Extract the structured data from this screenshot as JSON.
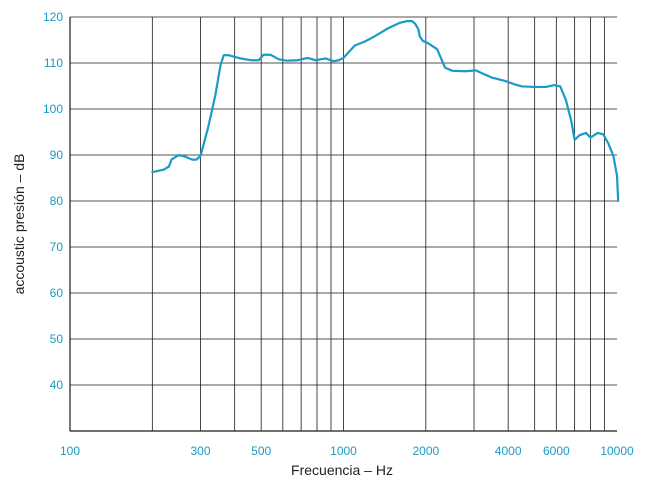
{
  "chart_data": {
    "type": "line",
    "title": "",
    "xlabel": "Frecuencia – Hz",
    "ylabel": "accoustic presión – dB",
    "x_scale": "log",
    "xlim": [
      100,
      10000
    ],
    "ylim": [
      30,
      120
    ],
    "grid": true,
    "x_gridlines": [
      200,
      300,
      400,
      500,
      600,
      700,
      800,
      900,
      1000,
      2000,
      3000,
      4000,
      5000,
      6000,
      7000,
      8000,
      9000
    ],
    "x_ticks": [
      {
        "value": 100,
        "label": "100"
      },
      {
        "value": 300,
        "label": "300"
      },
      {
        "value": 500,
        "label": "500"
      },
      {
        "value": 1000,
        "label": "1000"
      },
      {
        "value": 2000,
        "label": "2000"
      },
      {
        "value": 4000,
        "label": "4000"
      },
      {
        "value": 6000,
        "label": "6000"
      },
      {
        "value": 10000,
        "label": "10000"
      }
    ],
    "y_ticks": [
      {
        "value": 40,
        "label": "40"
      },
      {
        "value": 50,
        "label": "50"
      },
      {
        "value": 60,
        "label": "60"
      },
      {
        "value": 70,
        "label": "70"
      },
      {
        "value": 80,
        "label": "80"
      },
      {
        "value": 90,
        "label": "90"
      },
      {
        "value": 100,
        "label": "100"
      },
      {
        "value": 110,
        "label": "110"
      },
      {
        "value": 120,
        "label": "120"
      }
    ],
    "series": [
      {
        "color": "#1a9bc7",
        "points": [
          [
            200,
            86.3
          ],
          [
            220,
            86.8
          ],
          [
            230,
            87.5
          ],
          [
            235,
            89
          ],
          [
            250,
            90
          ],
          [
            265,
            89.6
          ],
          [
            280,
            89
          ],
          [
            290,
            89
          ],
          [
            300,
            89.8
          ],
          [
            320,
            96
          ],
          [
            340,
            103
          ],
          [
            355,
            109.5
          ],
          [
            365,
            111.7
          ],
          [
            380,
            111.7
          ],
          [
            420,
            111
          ],
          [
            460,
            110.6
          ],
          [
            490,
            110.6
          ],
          [
            510,
            111.8
          ],
          [
            540,
            111.8
          ],
          [
            580,
            110.8
          ],
          [
            620,
            110.5
          ],
          [
            680,
            110.6
          ],
          [
            740,
            111.1
          ],
          [
            790,
            110.6
          ],
          [
            860,
            111
          ],
          [
            920,
            110.4
          ],
          [
            960,
            110.6
          ],
          [
            1000,
            111.1
          ],
          [
            1050,
            112.5
          ],
          [
            1100,
            113.8
          ],
          [
            1200,
            114.7
          ],
          [
            1300,
            115.8
          ],
          [
            1450,
            117.5
          ],
          [
            1600,
            118.7
          ],
          [
            1700,
            119.1
          ],
          [
            1780,
            119.1
          ],
          [
            1830,
            118.5
          ],
          [
            1880,
            117.3
          ],
          [
            1900,
            115.8
          ],
          [
            1950,
            114.8
          ],
          [
            2050,
            114.2
          ],
          [
            2200,
            113
          ],
          [
            2350,
            109
          ],
          [
            2500,
            108.3
          ],
          [
            2800,
            108.2
          ],
          [
            3050,
            108.4
          ],
          [
            3200,
            107.8
          ],
          [
            3500,
            106.8
          ],
          [
            3900,
            106.1
          ],
          [
            4200,
            105.4
          ],
          [
            4500,
            104.9
          ],
          [
            5000,
            104.8
          ],
          [
            5500,
            104.8
          ],
          [
            5900,
            105.2
          ],
          [
            6200,
            104.9
          ],
          [
            6500,
            102
          ],
          [
            6800,
            97.5
          ],
          [
            7000,
            93.3
          ],
          [
            7300,
            94.3
          ],
          [
            7700,
            94.8
          ],
          [
            8000,
            93.8
          ],
          [
            8500,
            94.8
          ],
          [
            8900,
            94.5
          ],
          [
            9300,
            92.5
          ],
          [
            9700,
            89.8
          ],
          [
            10000,
            85.5
          ],
          [
            10100,
            80
          ]
        ]
      }
    ]
  },
  "colors": {
    "tick_label": "#1a9bc7",
    "grid": "#1a1a1a",
    "axis_label": "#222222"
  }
}
